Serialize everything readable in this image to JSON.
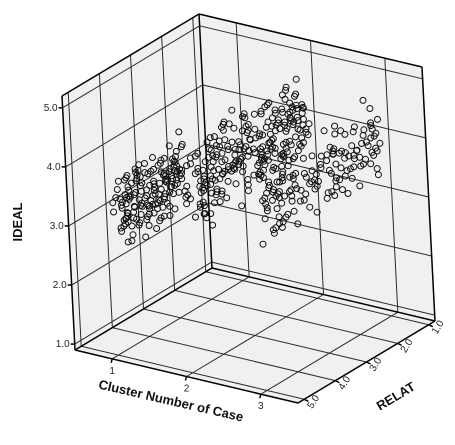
{
  "chart_data": {
    "type": "scatter",
    "projection": "3d",
    "axes": {
      "x": {
        "label": "Cluster Number of Case",
        "ticks": [
          "1",
          "2",
          "3"
        ],
        "range": [
          0.5,
          3.5
        ]
      },
      "y": {
        "label": "IDEAL",
        "ticks": [
          "1.0",
          "2.0",
          "3.0",
          "4.0",
          "5.0"
        ],
        "range": [
          0.9,
          5.2
        ]
      },
      "z": {
        "label": "RELAT",
        "ticks": [
          "1.0",
          "2.0",
          "3.0",
          "4.0",
          "5.0"
        ],
        "range": [
          0.8,
          5.2
        ]
      }
    },
    "marker": "open-circle",
    "grid": true,
    "clusters": [
      {
        "cluster": 1,
        "relat_range": [
          2.6,
          4.8
        ],
        "ideal_range": [
          2.4,
          4.1
        ],
        "approx_points": 250
      },
      {
        "cluster": 2,
        "relat_range": [
          1.0,
          4.6
        ],
        "ideal_range": [
          3.0,
          5.0
        ],
        "approx_points": 300
      },
      {
        "cluster": 3,
        "relat_range": [
          1.2,
          4.8
        ],
        "ideal_range": [
          3.0,
          5.0
        ],
        "approx_points": 180
      }
    ]
  }
}
